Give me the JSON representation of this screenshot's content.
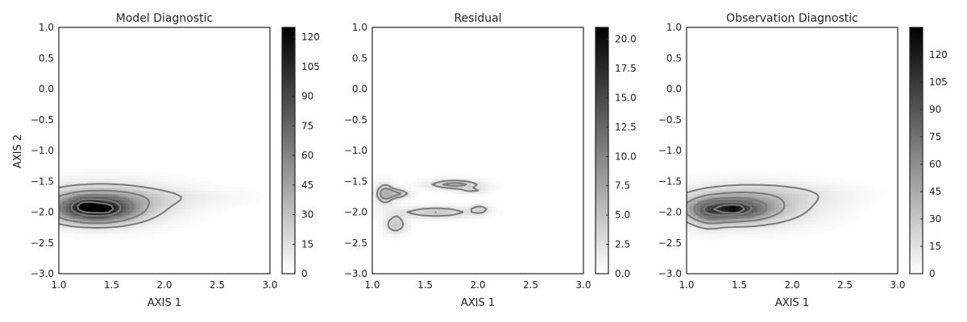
{
  "figure": {
    "shared_ylabel": "AXIS 2"
  },
  "chart_data": [
    {
      "type": "heatmap",
      "title": "Model Diagnostic",
      "xlabel": "AXIS 1",
      "ylabel": "AXIS 2",
      "xlim": [
        1.0,
        3.0
      ],
      "ylim": [
        -3.0,
        1.0
      ],
      "x_ticks": [
        "1.0",
        "1.5",
        "2.0",
        "2.5",
        "3.0"
      ],
      "y_ticks": [
        "1.0",
        "0.5",
        "0.0",
        "−0.5",
        "−1.0",
        "−1.5",
        "−2.0",
        "−2.5",
        "−3.0"
      ],
      "colorbar": {
        "min": 0,
        "max": 125,
        "ticks": [
          "0",
          "15",
          "30",
          "45",
          "60",
          "75",
          "90",
          "105",
          "120"
        ],
        "tick_values": [
          0,
          15,
          30,
          45,
          60,
          75,
          90,
          105,
          120
        ]
      },
      "blobs": [
        {
          "cx": 1.35,
          "cy": -1.95,
          "sx": 0.25,
          "sy": 0.14,
          "amp": 90
        },
        {
          "cx": 1.4,
          "cy": -1.85,
          "sx": 0.45,
          "sy": 0.22,
          "amp": 35
        },
        {
          "cx": 1.9,
          "cy": -1.75,
          "sx": 0.55,
          "sy": 0.1,
          "amp": 8
        },
        {
          "cx": 1.25,
          "cy": -1.9,
          "sx": 0.07,
          "sy": 0.07,
          "amp": 30
        },
        {
          "cx": 1.45,
          "cy": -1.95,
          "sx": 0.06,
          "sy": 0.06,
          "amp": 20
        }
      ],
      "contour_levels": [
        15,
        35,
        60,
        90,
        115
      ]
    },
    {
      "type": "heatmap",
      "title": "Residual",
      "xlabel": "AXIS 1",
      "ylabel": "",
      "xlim": [
        1.0,
        3.0
      ],
      "ylim": [
        -3.0,
        1.0
      ],
      "x_ticks": [
        "1.0",
        "1.5",
        "2.0",
        "2.5",
        "3.0"
      ],
      "y_ticks": [
        "1.0",
        "0.5",
        "0.0",
        "−0.5",
        "−1.0",
        "−1.5",
        "−2.0",
        "−2.5",
        "−3.0"
      ],
      "colorbar": {
        "min": 0,
        "max": 21,
        "ticks": [
          "0.0",
          "2.5",
          "5.0",
          "7.5",
          "10.0",
          "12.5",
          "15.0",
          "17.5",
          "20.0"
        ],
        "tick_values": [
          0,
          2.5,
          5,
          7.5,
          10,
          12.5,
          15,
          17.5,
          20
        ]
      },
      "blobs": [
        {
          "cx": 1.78,
          "cy": -1.55,
          "sx": 0.18,
          "sy": 0.05,
          "amp": 6
        },
        {
          "cx": 1.12,
          "cy": -1.7,
          "sx": 0.06,
          "sy": 0.12,
          "amp": 6
        },
        {
          "cx": 1.25,
          "cy": -1.7,
          "sx": 0.08,
          "sy": 0.05,
          "amp": 5
        },
        {
          "cx": 1.6,
          "cy": -2.0,
          "sx": 0.25,
          "sy": 0.06,
          "amp": 5
        },
        {
          "cx": 1.22,
          "cy": -2.2,
          "sx": 0.07,
          "sy": 0.1,
          "amp": 5
        },
        {
          "cx": 2.02,
          "cy": -1.95,
          "sx": 0.06,
          "sy": 0.05,
          "amp": 4
        },
        {
          "cx": 1.95,
          "cy": -1.65,
          "sx": 0.1,
          "sy": 0.03,
          "amp": 3
        }
      ],
      "contour_levels": [
        3,
        5
      ]
    },
    {
      "type": "heatmap",
      "title": "Observation Diagnostic",
      "xlabel": "AXIS 1",
      "ylabel": "",
      "xlim": [
        1.0,
        3.0
      ],
      "ylim": [
        -3.0,
        1.0
      ],
      "x_ticks": [
        "1.0",
        "1.5",
        "2.0",
        "2.5",
        "3.0"
      ],
      "y_ticks": [
        "1.0",
        "0.5",
        "0.0",
        "−0.5",
        "−1.0",
        "−1.5",
        "−2.0",
        "−2.5",
        "−3.0"
      ],
      "colorbar": {
        "min": 0,
        "max": 135,
        "ticks": [
          "0",
          "15",
          "30",
          "45",
          "60",
          "75",
          "90",
          "105",
          "120"
        ],
        "tick_values": [
          0,
          15,
          30,
          45,
          60,
          75,
          90,
          105,
          120
        ]
      },
      "blobs": [
        {
          "cx": 1.4,
          "cy": -1.95,
          "sx": 0.25,
          "sy": 0.12,
          "amp": 80
        },
        {
          "cx": 1.55,
          "cy": -1.9,
          "sx": 0.45,
          "sy": 0.22,
          "amp": 35
        },
        {
          "cx": 1.85,
          "cy": -1.7,
          "sx": 0.5,
          "sy": 0.12,
          "amp": 10
        },
        {
          "cx": 1.2,
          "cy": -2.05,
          "sx": 0.1,
          "sy": 0.15,
          "amp": 20
        },
        {
          "cx": 1.45,
          "cy": -1.95,
          "sx": 0.06,
          "sy": 0.05,
          "amp": 25
        }
      ],
      "contour_levels": [
        15,
        35,
        60,
        90,
        110
      ]
    }
  ]
}
